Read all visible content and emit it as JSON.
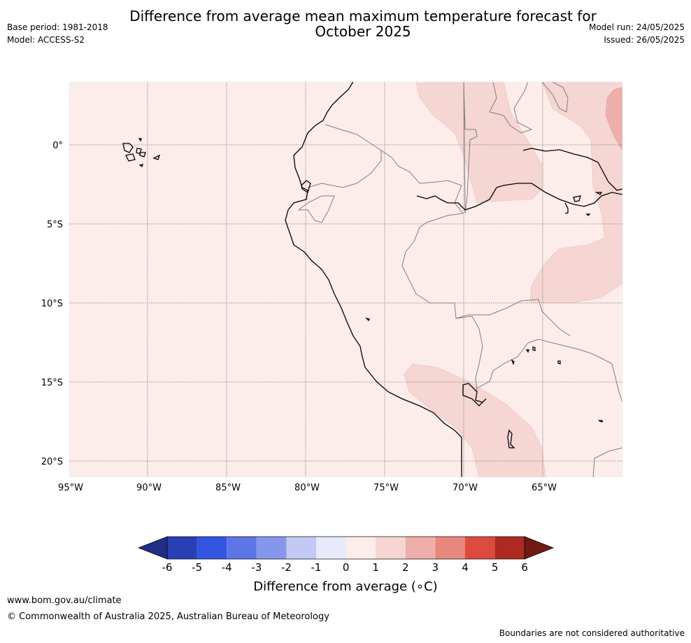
{
  "header": {
    "title_line1": "Difference from average mean maximum temperature forecast for",
    "title_line2": "October 2025",
    "base_period": "Base period: 1981-2018",
    "model": "Model: ACCESS-S2",
    "model_run": "Model run: 24/05/2025",
    "issued": "Issued: 26/05/2025"
  },
  "map": {
    "lat_labels": [
      "0°",
      "5°S",
      "10°S",
      "15°S",
      "20°S"
    ],
    "lon_labels": [
      "95°W",
      "90°W",
      "85°W",
      "80°W",
      "75°W",
      "70°W",
      "65°W"
    ],
    "colors": {
      "background_class": "#fcecea",
      "class_1_2": "#f5d6d3",
      "class_2_3": "#eeaeaa"
    }
  },
  "colorbar": {
    "ticks": [
      "-6",
      "-5",
      "-4",
      "-3",
      "-2",
      "-1",
      "0",
      "1",
      "2",
      "3",
      "4",
      "5",
      "6"
    ],
    "colors": [
      "#1f2f88",
      "#2a3fb3",
      "#3455e1",
      "#5d76e6",
      "#8596eb",
      "#c1c9f4",
      "#e8eafb",
      "#fcecea",
      "#f5d6d3",
      "#eeaeaa",
      "#e8877e",
      "#dd4a3f",
      "#ac2a22",
      "#6f1b14"
    ],
    "label": "Difference from average (∘C)"
  },
  "footer": {
    "url": "www.bom.gov.au/climate",
    "copyright": "© Commonwealth of Australia 2025, Australian Bureau of Meteorology",
    "disclaimer": "Boundaries are not considered authoritative"
  }
}
